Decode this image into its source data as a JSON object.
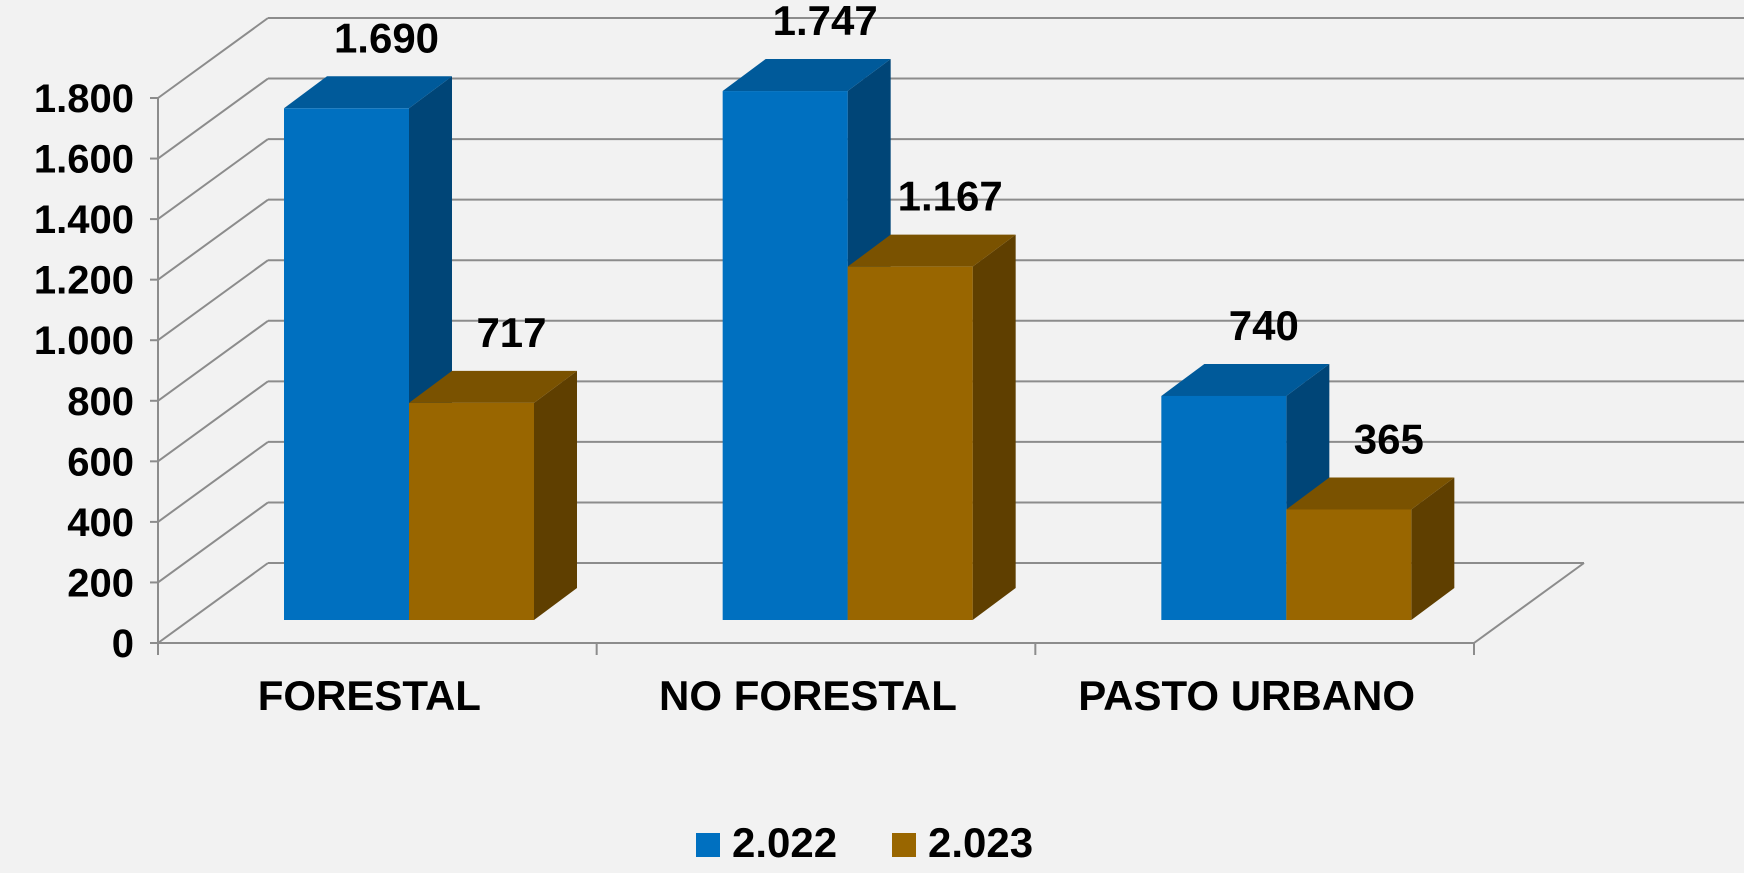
{
  "chart_data": {
    "type": "bar",
    "categories": [
      "FORESTAL",
      "NO FORESTAL",
      "PASTO URBANO"
    ],
    "series": [
      {
        "name": "2.022",
        "values": [
          1690,
          1747,
          740
        ],
        "labels": [
          "1.690",
          "1.747",
          "740"
        ],
        "color": "#0070c0"
      },
      {
        "name": "2.023",
        "values": [
          717,
          1167,
          365
        ],
        "labels": [
          "717",
          "1.167",
          "365"
        ],
        "color": "#996600"
      }
    ],
    "title": "",
    "xlabel": "",
    "ylabel": "",
    "ylim": [
      0,
      1800
    ],
    "yticks": [
      0,
      200,
      400,
      600,
      800,
      1000,
      1200,
      1400,
      1600,
      1800
    ],
    "ytick_labels": [
      "0",
      "200",
      "400",
      "600",
      "800",
      "1.000",
      "1.200",
      "1.400",
      "1.600",
      "1.800"
    ],
    "grid": true,
    "style_3d": true,
    "legend_position": "bottom"
  }
}
